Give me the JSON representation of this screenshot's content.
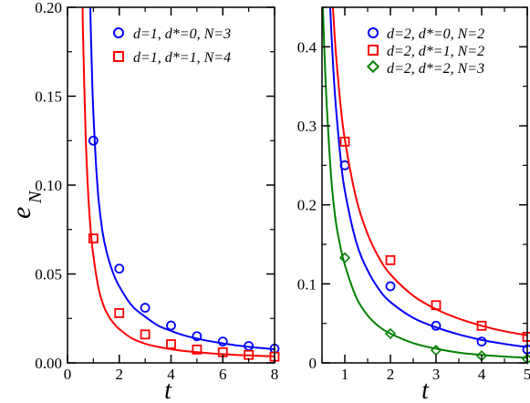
{
  "chart_data": [
    {
      "type": "scatter",
      "panel": "left",
      "xlabel": "t",
      "ylabel": "e",
      "ylabel_sub": "N",
      "xlim": [
        0,
        8
      ],
      "ylim": [
        0,
        0.2
      ],
      "xticks": [
        0,
        2,
        4,
        6,
        8
      ],
      "xtick_labels": [
        "0",
        "2",
        "4",
        "6",
        "8"
      ],
      "yticks": [
        0,
        0.05,
        0.1,
        0.15,
        0.2
      ],
      "ytick_labels": [
        "0.00",
        "0.05",
        "0.10",
        "0.15",
        "0.20"
      ],
      "legend_position": "top-right",
      "series": [
        {
          "name": "d=1, d*=0, N=3",
          "marker": "circle",
          "color": "#0000ff",
          "x": [
            1,
            2,
            3,
            4,
            5,
            6,
            7,
            8
          ],
          "y": [
            0.125,
            0.053,
            0.031,
            0.021,
            0.015,
            0.012,
            0.0095,
            0.008
          ],
          "fit_x": [
            0.88,
            0.9,
            0.95,
            1,
            1.1,
            1.2,
            1.35,
            1.5,
            1.75,
            2,
            2.5,
            3,
            3.5,
            4,
            4.5,
            5,
            5.5,
            6,
            6.5,
            7,
            7.5,
            8
          ],
          "fit_y": [
            0.2,
            0.188,
            0.16,
            0.14,
            0.112,
            0.092,
            0.074,
            0.063,
            0.051,
            0.043,
            0.032,
            0.026,
            0.021,
            0.018,
            0.0155,
            0.0137,
            0.0122,
            0.011,
            0.0099,
            0.009,
            0.0083,
            0.0077
          ]
        },
        {
          "name": "d=1, d*=1, N=4",
          "marker": "square",
          "color": "#ff0000",
          "x": [
            1,
            2,
            3,
            4,
            5,
            6,
            7,
            8
          ],
          "y": [
            0.07,
            0.028,
            0.016,
            0.0105,
            0.0075,
            0.006,
            0.0045,
            0.0035
          ],
          "fit_x": [
            0.58,
            0.6,
            0.7,
            0.8,
            0.9,
            1,
            1.2,
            1.4,
            1.6,
            1.8,
            2,
            2.5,
            3,
            3.5,
            4,
            4.5,
            5,
            5.5,
            6,
            6.5,
            7,
            7.5,
            8
          ],
          "fit_y": [
            0.2,
            0.185,
            0.128,
            0.095,
            0.074,
            0.06,
            0.042,
            0.032,
            0.026,
            0.022,
            0.019,
            0.0137,
            0.0108,
            0.009,
            0.0077,
            0.0067,
            0.006,
            0.0054,
            0.0049,
            0.0045,
            0.0042,
            0.0039,
            0.0037
          ]
        }
      ]
    },
    {
      "type": "scatter",
      "panel": "right",
      "xlabel": "t",
      "xlim": [
        0.5,
        5
      ],
      "ylim": [
        0,
        0.45
      ],
      "xticks": [
        1,
        2,
        3,
        4,
        5
      ],
      "xtick_labels": [
        "1",
        "2",
        "3",
        "4",
        "5"
      ],
      "yticks": [
        0,
        0.1,
        0.2,
        0.3,
        0.4
      ],
      "ytick_labels": [
        "0",
        "0.1",
        "0.2",
        "0.3",
        "0.4"
      ],
      "legend_position": "top-right",
      "series": [
        {
          "name": "d=2, d*=0, N=2",
          "marker": "circle",
          "color": "#0000ff",
          "x": [
            1,
            2,
            3,
            4,
            5
          ],
          "y": [
            0.25,
            0.097,
            0.047,
            0.027,
            0.017
          ],
          "fit_x": [
            0.68,
            0.7,
            0.75,
            0.8,
            0.9,
            1,
            1.25,
            1.5,
            1.75,
            2,
            2.5,
            3,
            3.5,
            4,
            4.5,
            5
          ],
          "fit_y": [
            0.45,
            0.424,
            0.37,
            0.327,
            0.263,
            0.218,
            0.153,
            0.117,
            0.093,
            0.077,
            0.057,
            0.045,
            0.036,
            0.029,
            0.024,
            0.02
          ]
        },
        {
          "name": "d=2, d*=1, N=2",
          "marker": "square",
          "color": "#ff0000",
          "x": [
            1,
            2,
            3,
            4,
            5
          ],
          "y": [
            0.28,
            0.13,
            0.073,
            0.047,
            0.033
          ],
          "fit_x": [
            0.74,
            0.75,
            0.8,
            0.9,
            1,
            1.25,
            1.5,
            1.75,
            2,
            2.5,
            3,
            3.5,
            4,
            4.5,
            5
          ],
          "fit_y": [
            0.45,
            0.44,
            0.395,
            0.33,
            0.283,
            0.208,
            0.163,
            0.133,
            0.112,
            0.085,
            0.068,
            0.056,
            0.047,
            0.04,
            0.035
          ]
        },
        {
          "name": "d=2, d*=2, N=3",
          "marker": "diamond",
          "color": "#008000",
          "x": [
            1,
            2,
            3,
            4,
            5
          ],
          "y": [
            0.133,
            0.037,
            0.016,
            0.009,
            0.005
          ],
          "fit_x": [
            0.52,
            0.55,
            0.6,
            0.7,
            0.8,
            0.9,
            1,
            1.25,
            1.5,
            1.75,
            2,
            2.5,
            3,
            3.5,
            4,
            4.5,
            5
          ],
          "fit_y": [
            0.45,
            0.398,
            0.33,
            0.235,
            0.18,
            0.148,
            0.124,
            0.083,
            0.06,
            0.046,
            0.037,
            0.025,
            0.018,
            0.013,
            0.01,
            0.008,
            0.0065
          ]
        }
      ]
    }
  ]
}
